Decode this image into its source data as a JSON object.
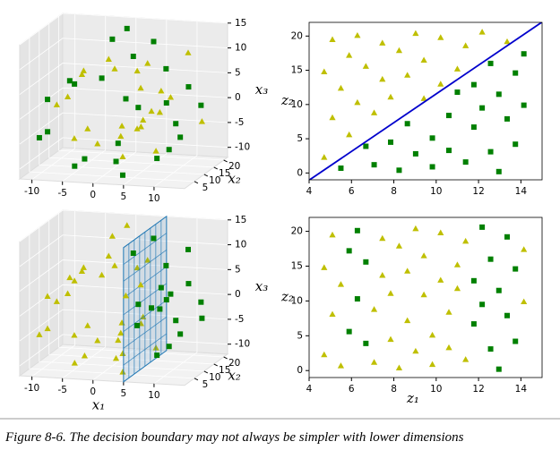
{
  "chart_data": [
    {
      "type": "scatter3d",
      "ylabel": "x₂",
      "zlabel": "x₃",
      "xlim": [
        -12,
        15
      ],
      "ylim": [
        0,
        22
      ],
      "zlim": [
        -12,
        15
      ],
      "xticks": [
        -10,
        -5,
        0,
        5,
        10
      ],
      "yticks": [
        5,
        10,
        15,
        20
      ],
      "zticks": [
        -10,
        -5,
        0,
        5,
        10,
        15
      ],
      "series": [
        {
          "color": "#bfbf00",
          "marker": "^",
          "x": [
            0,
            0,
            1.96,
            1.96,
            3.89,
            5.44,
            5.44,
            6.28,
            6.28,
            6.17,
            5.0,
            2.86,
            2.86,
            0,
            -3.16,
            -6.11,
            -8.34,
            -9.42,
            -9.42,
            -7.22,
            -7.22,
            0,
            4.36,
            11.25,
            9.44
          ],
          "y": [
            2.3,
            14.8,
            8.1,
            19.5,
            12.4,
            5.6,
            17.2,
            10.3,
            20.1,
            15.6,
            8.8,
            13.7,
            19.0,
            11.1,
            17.9,
            14.3,
            20.4,
            10.9,
            16.5,
            13.0,
            19.8,
            15.2,
            18.6,
            20.6,
            19.2
          ],
          "z": [
            -4.71,
            -4.71,
            -4.72,
            -4.72,
            -3.89,
            -2.25,
            -2.25,
            0,
            0,
            2.56,
            5.0,
            6.89,
            6.89,
            7.85,
            7.62,
            6.11,
            3.46,
            0,
            0,
            -7.22,
            -7.22,
            -11.0,
            -10.52,
            -4.66,
            9.44
          ]
        },
        {
          "color": "#008000",
          "marker": "s",
          "x": [
            3.89,
            6.17,
            5.0,
            0,
            -3.16,
            -6.11,
            -8.34,
            -9.07,
            -9.07,
            -4.06,
            -4.06,
            0,
            4.36,
            8.33,
            8.33,
            11.25,
            12.57,
            12.57,
            11.97,
            11.97,
            9.44,
            5.26,
            5.26,
            0,
            0
          ],
          "y": [
            0.7,
            3.9,
            1.2,
            4.5,
            0.4,
            7.2,
            2.8,
            5.1,
            0.9,
            8.4,
            3.3,
            11.8,
            1.6,
            6.7,
            12.9,
            9.5,
            3.1,
            16.0,
            11.5,
            0.2,
            7.9,
            14.6,
            4.2,
            9.9,
            17.4
          ],
          "z": [
            -3.89,
            2.56,
            5.0,
            7.85,
            7.62,
            6.11,
            3.46,
            -3.76,
            -3.76,
            -9.8,
            -9.8,
            -11.0,
            -10.52,
            -8.33,
            -8.33,
            -4.66,
            0,
            0,
            4.96,
            4.96,
            9.44,
            12.7,
            12.7,
            14.14,
            14.14
          ]
        }
      ]
    },
    {
      "type": "scatter",
      "ylabel": "z₂",
      "xlim": [
        4,
        15
      ],
      "ylim": [
        -1,
        22
      ],
      "xticks": [
        4,
        6,
        8,
        10,
        12,
        14
      ],
      "yticks": [
        0,
        5,
        10,
        15,
        20
      ],
      "series": [
        {
          "color": "#bfbf00",
          "marker": "^",
          "x": [
            4.71,
            4.71,
            5.1,
            5.1,
            5.5,
            5.89,
            5.89,
            6.28,
            6.28,
            6.68,
            7.07,
            7.46,
            7.46,
            7.85,
            8.25,
            8.64,
            9.03,
            9.42,
            9.42,
            10.21,
            10.21,
            11.0,
            11.39,
            12.17,
            13.35
          ],
          "y": [
            2.3,
            14.8,
            8.1,
            19.5,
            12.4,
            5.6,
            17.2,
            10.3,
            20.1,
            15.6,
            8.8,
            13.7,
            19.0,
            11.1,
            17.9,
            14.3,
            20.4,
            10.9,
            16.5,
            13.0,
            19.8,
            15.2,
            18.6,
            20.6,
            19.2
          ]
        },
        {
          "color": "#008000",
          "marker": "s",
          "x": [
            5.5,
            6.68,
            7.07,
            7.85,
            8.25,
            8.64,
            9.03,
            9.82,
            9.82,
            10.6,
            10.6,
            11.0,
            11.39,
            11.78,
            11.78,
            12.17,
            12.57,
            12.57,
            12.96,
            12.96,
            13.35,
            13.74,
            13.74,
            14.14,
            14.14
          ],
          "y": [
            0.7,
            3.9,
            1.2,
            4.5,
            0.4,
            7.2,
            2.8,
            5.1,
            0.9,
            8.4,
            3.3,
            11.8,
            1.6,
            6.7,
            12.9,
            9.5,
            3.1,
            16.0,
            11.5,
            0.2,
            7.9,
            14.6,
            4.2,
            9.9,
            17.4
          ]
        }
      ],
      "line": {
        "color": "#0000cc",
        "x": [
          4,
          15
        ],
        "y": [
          -1.05,
          22.05
        ]
      }
    },
    {
      "type": "scatter3d",
      "xlabel": "x₁",
      "ylabel": "x₂",
      "zlabel": "x₃",
      "xlim": [
        -12,
        15
      ],
      "ylim": [
        0,
        22
      ],
      "zlim": [
        -12,
        15
      ],
      "xticks": [
        -10,
        -5,
        0,
        5,
        10
      ],
      "yticks": [
        5,
        10,
        15,
        20
      ],
      "zticks": [
        -10,
        -5,
        0,
        5,
        10,
        15
      ],
      "series": [
        {
          "color": "#bfbf00",
          "marker": "^",
          "x": [
            0,
            0,
            1.96,
            1.96,
            3.89,
            3.89,
            5.0,
            5.0,
            2.86,
            2.86,
            0,
            0,
            -3.16,
            -3.16,
            -6.11,
            -6.11,
            -8.34,
            -8.34,
            -9.42,
            -9.42,
            -9.07,
            -9.07,
            -7.22,
            -7.22,
            -4.06,
            -4.06,
            0,
            0,
            4.36,
            4.36,
            0,
            0
          ],
          "y": [
            2.3,
            14.8,
            8.1,
            19.5,
            0.7,
            12.4,
            8.8,
            1.2,
            13.7,
            19.0,
            4.5,
            11.1,
            17.9,
            0.4,
            7.2,
            14.3,
            2.8,
            20.4,
            10.9,
            16.5,
            5.1,
            0.9,
            13.0,
            19.8,
            8.4,
            3.3,
            15.2,
            11.8,
            1.6,
            18.6,
            9.9,
            17.4
          ],
          "z": [
            -4.71,
            -4.71,
            -4.72,
            -4.72,
            -3.89,
            -3.89,
            5.0,
            5.0,
            6.89,
            6.89,
            7.85,
            7.85,
            7.62,
            7.62,
            6.11,
            6.11,
            3.46,
            3.46,
            0,
            0,
            -3.76,
            -3.76,
            -7.22,
            -7.22,
            -9.8,
            -9.8,
            -11.0,
            -11.0,
            -10.52,
            -10.52,
            14.14,
            14.14
          ]
        },
        {
          "color": "#008000",
          "marker": "s",
          "x": [
            5.44,
            5.44,
            6.28,
            6.28,
            6.17,
            6.17,
            8.33,
            8.33,
            11.25,
            11.25,
            12.57,
            12.57,
            11.97,
            11.97,
            9.44,
            9.44,
            5.26,
            5.26
          ],
          "y": [
            5.6,
            17.2,
            10.3,
            20.1,
            3.9,
            15.6,
            6.7,
            12.9,
            20.6,
            9.5,
            3.1,
            16.0,
            11.5,
            0.2,
            7.9,
            19.2,
            14.6,
            4.2
          ],
          "z": [
            -2.25,
            -2.25,
            0,
            0,
            2.56,
            2.56,
            -8.33,
            -8.33,
            -4.66,
            -4.66,
            0,
            0,
            4.96,
            4.96,
            9.44,
            9.44,
            12.7,
            12.7
          ]
        }
      ],
      "plane": {
        "color": "#1f77b4",
        "x": 5,
        "y": [
          0,
          22
        ],
        "z": [
          -12,
          15
        ]
      }
    },
    {
      "type": "scatter",
      "xlabel": "z₁",
      "ylabel": "z₂",
      "xlim": [
        4,
        15
      ],
      "ylim": [
        -1,
        22
      ],
      "xticks": [
        4,
        6,
        8,
        10,
        12,
        14
      ],
      "yticks": [
        0,
        5,
        10,
        15,
        20
      ],
      "series": [
        {
          "color": "#bfbf00",
          "marker": "^",
          "x": [
            4.71,
            4.71,
            5.1,
            5.1,
            5.5,
            5.5,
            7.07,
            7.07,
            7.46,
            7.46,
            7.85,
            7.85,
            8.25,
            8.25,
            8.64,
            8.64,
            9.03,
            9.03,
            9.42,
            9.42,
            9.82,
            9.82,
            10.21,
            10.21,
            10.6,
            10.6,
            11.0,
            11.0,
            11.39,
            11.39,
            14.14,
            14.14
          ],
          "y": [
            2.3,
            14.8,
            8.1,
            19.5,
            0.7,
            12.4,
            8.8,
            1.2,
            13.7,
            19.0,
            4.5,
            11.1,
            17.9,
            0.4,
            7.2,
            14.3,
            2.8,
            20.4,
            10.9,
            16.5,
            5.1,
            0.9,
            13.0,
            19.8,
            8.4,
            3.3,
            15.2,
            11.8,
            1.6,
            18.6,
            9.9,
            17.4
          ]
        },
        {
          "color": "#008000",
          "marker": "s",
          "x": [
            5.89,
            5.89,
            6.28,
            6.28,
            6.68,
            6.68,
            11.78,
            11.78,
            12.17,
            12.17,
            12.57,
            12.57,
            12.96,
            12.96,
            13.35,
            13.35,
            13.74,
            13.74
          ],
          "y": [
            5.6,
            17.2,
            10.3,
            20.1,
            3.9,
            15.6,
            6.7,
            12.9,
            20.6,
            9.5,
            3.1,
            16.0,
            11.5,
            0.2,
            7.9,
            19.2,
            14.6,
            4.2
          ]
        }
      ]
    }
  ],
  "caption": "Figure 8-6. The decision boundary may not always be simpler with lower dimensions"
}
